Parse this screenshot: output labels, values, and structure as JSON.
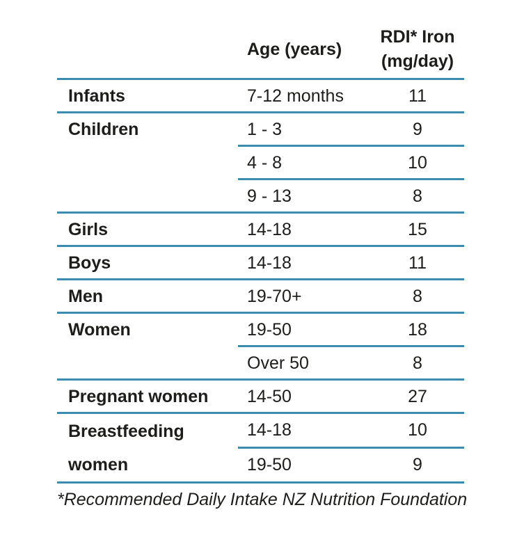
{
  "colors": {
    "rule": "#3a8cad",
    "text": "#1d1d1b"
  },
  "table": {
    "header": {
      "age": "Age (years)",
      "rdi_line1": "RDI* Iron",
      "rdi_line2": "(mg/day)"
    },
    "rows": [
      {
        "label": "Infants",
        "age": "7-12 months",
        "rdi": "11"
      },
      {
        "label": "Children",
        "age": "1 - 3",
        "rdi": "9"
      },
      {
        "age": "4 - 8",
        "rdi": "10"
      },
      {
        "age": "9 - 13",
        "rdi": "8"
      },
      {
        "label": "Girls",
        "age": "14-18",
        "rdi": "15"
      },
      {
        "label": "Boys",
        "age": "14-18",
        "rdi": "11"
      },
      {
        "label": "Men",
        "age": "19-70+",
        "rdi": "8"
      },
      {
        "label": "Women",
        "age": "19-50",
        "rdi": "18"
      },
      {
        "age": "Over 50",
        "rdi": "8"
      },
      {
        "label": "Pregnant women",
        "age": "14-50",
        "rdi": "27"
      },
      {
        "label": "Breastfeeding women",
        "age": "14-18",
        "rdi": "10"
      },
      {
        "age": "19-50",
        "rdi": "9"
      }
    ]
  },
  "footnote": "*Recommended Daily Intake NZ Nutrition Foundation",
  "chart_data": {
    "type": "table",
    "title": "",
    "columns": [
      "",
      "Age (years)",
      "RDI* Iron (mg/day)"
    ],
    "rows": [
      [
        "Infants",
        "7-12 months",
        11
      ],
      [
        "Children",
        "1 - 3",
        9
      ],
      [
        "",
        "4 - 8",
        10
      ],
      [
        "",
        "9 - 13",
        8
      ],
      [
        "Girls",
        "14-18",
        15
      ],
      [
        "Boys",
        "14-18",
        11
      ],
      [
        "Men",
        "19-70+",
        8
      ],
      [
        "Women",
        "19-50",
        18
      ],
      [
        "",
        "Over 50",
        8
      ],
      [
        "Pregnant women",
        "14-50",
        27
      ],
      [
        "Breastfeeding women",
        "14-18",
        10
      ],
      [
        "",
        "19-50",
        9
      ]
    ],
    "footnote": "*Recommended Daily Intake NZ Nutrition Foundation",
    "layout_hints": {
      "group_dividers": "full-width teal rules between groups",
      "subrow_dividers": "partial rules spanning age and value columns only",
      "value_alignment": "center"
    }
  }
}
